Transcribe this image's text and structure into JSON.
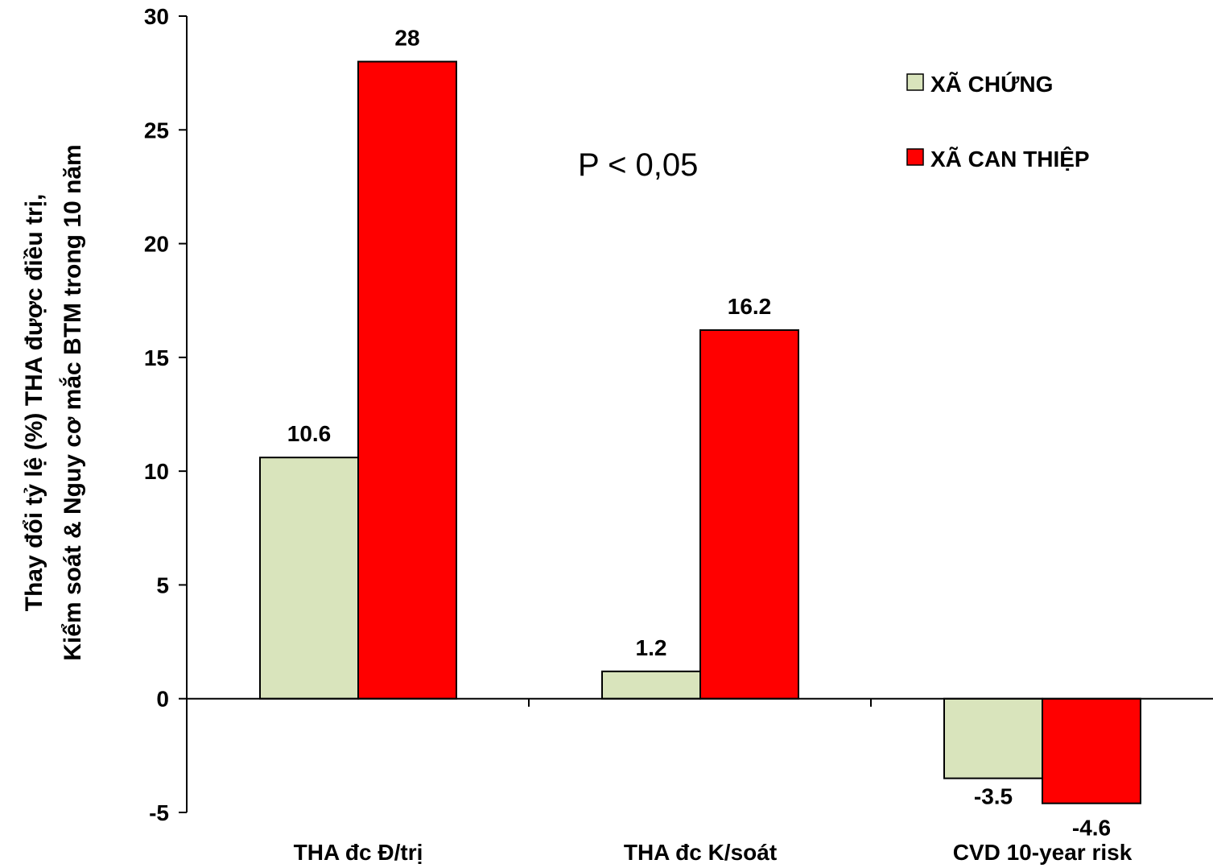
{
  "chart_data": {
    "type": "bar",
    "title": "",
    "ylabel_lines": [
      "Thay đổi tỷ lệ (%) THA được điều trị,",
      "Kiểm soát & Nguy cơ mắc BTM trong 10 năm"
    ],
    "xlabel": "",
    "categories": [
      "THA đc Đ/trị",
      "THA đc K/soát",
      "CVD 10-year risk"
    ],
    "series": [
      {
        "name": "XÃ CHỨNG",
        "color": "#d9e4bc",
        "values": [
          10.6,
          1.2,
          -3.5
        ],
        "labels": [
          "10.6",
          "1.2",
          "-3.5"
        ]
      },
      {
        "name": "XÃ CAN THIỆP",
        "color": "#ff0000",
        "values": [
          28,
          16.2,
          -4.6
        ],
        "labels": [
          "28",
          "16.2",
          "-4.6"
        ]
      }
    ],
    "ylim": [
      -5,
      30
    ],
    "yticks": [
      -5,
      0,
      5,
      10,
      15,
      20,
      25,
      30
    ],
    "annotation": "P < 0,05",
    "grid": false,
    "legend_position": "top-right"
  }
}
